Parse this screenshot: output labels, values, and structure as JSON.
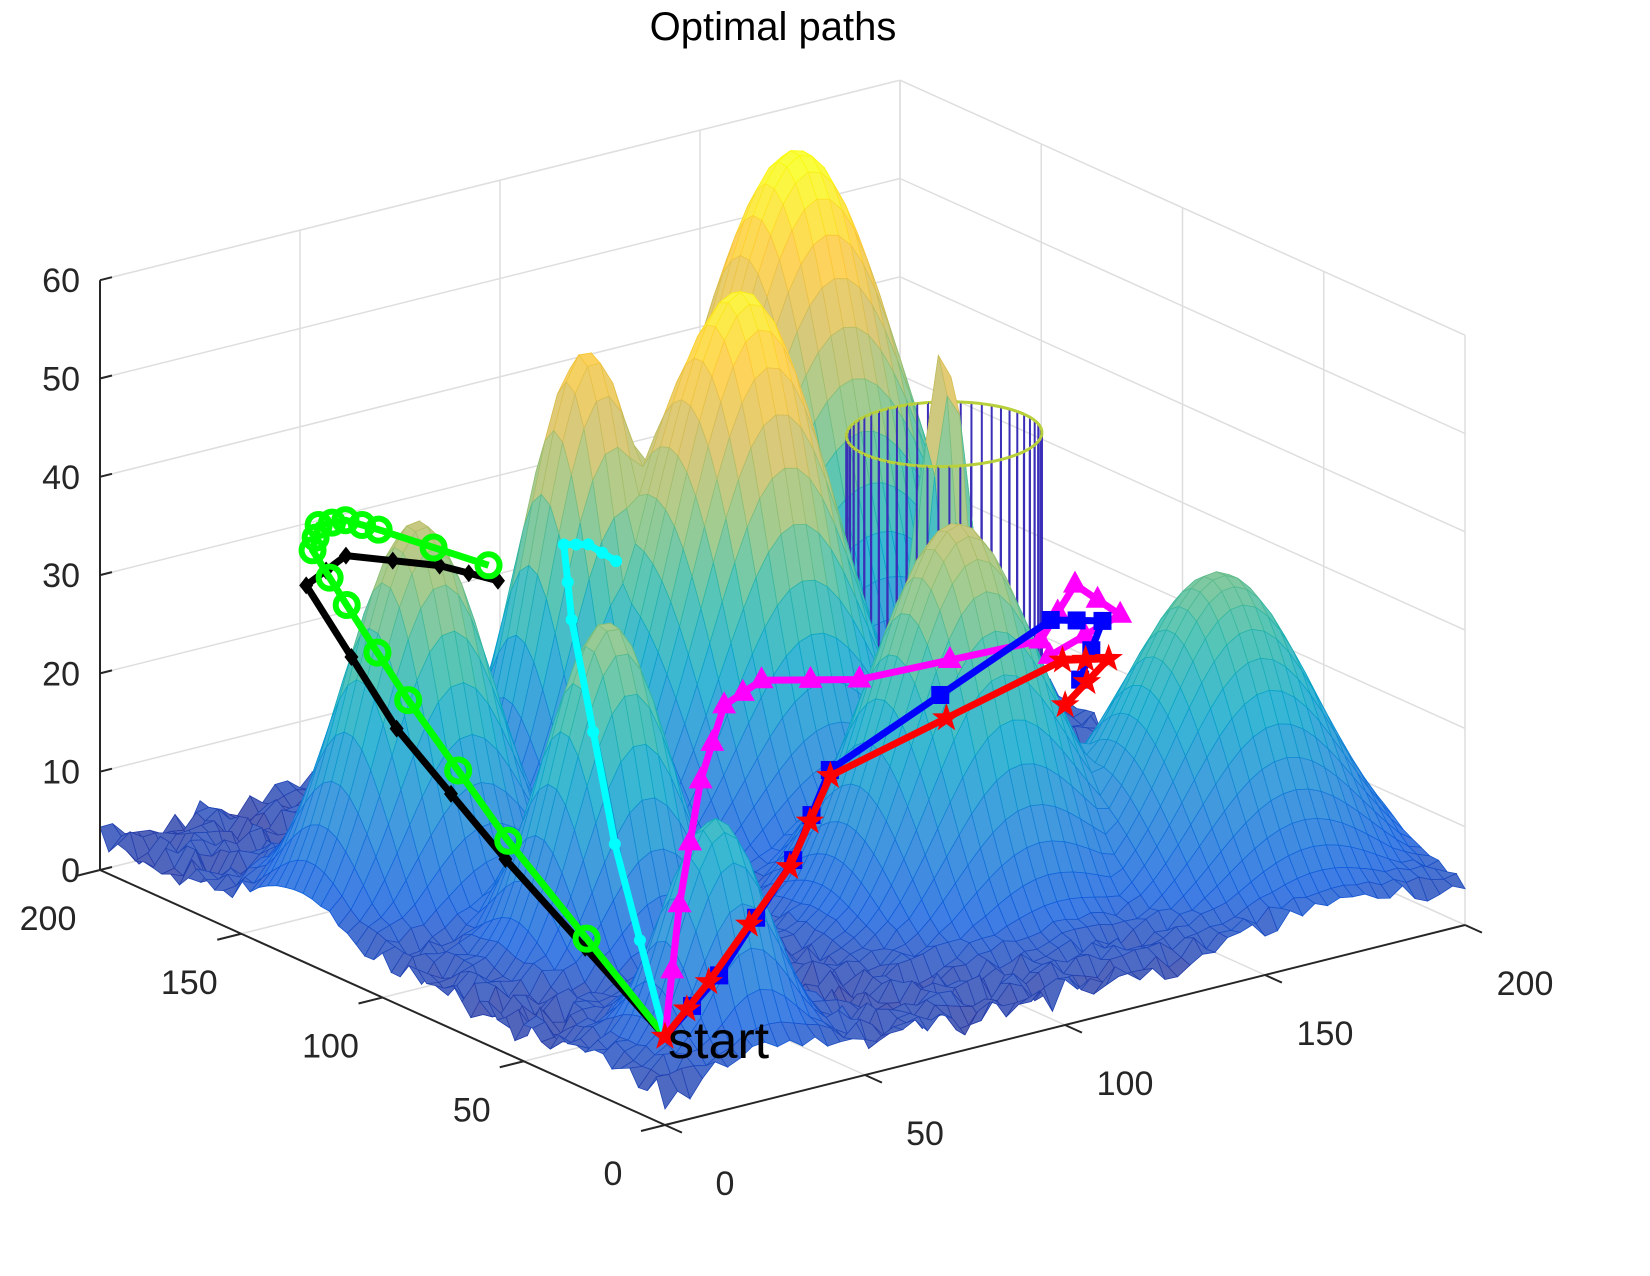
{
  "chart_data": {
    "type": "surface3d",
    "title": "Optimal paths",
    "xlabel": "",
    "ylabel": "",
    "zlabel": "",
    "xlim": [
      0,
      200
    ],
    "ylim": [
      0,
      200
    ],
    "zlim": [
      0,
      60
    ],
    "xticks": [
      "0",
      "50",
      "100",
      "150",
      "200"
    ],
    "yticks": [
      "0",
      "50",
      "100",
      "150",
      "200"
    ],
    "zticks": [
      "0",
      "10",
      "20",
      "30",
      "40",
      "50",
      "60"
    ],
    "grid": true,
    "colormap": "parula",
    "surface_peaks": [
      {
        "x": 160,
        "y": 180,
        "height": 58,
        "sigma": 22
      },
      {
        "x": 110,
        "y": 128,
        "height": 55,
        "sigma": 19
      },
      {
        "x": 85,
        "y": 150,
        "height": 46,
        "sigma": 13
      },
      {
        "x": 30,
        "y": 130,
        "height": 40,
        "sigma": 15
      },
      {
        "x": 115,
        "y": 60,
        "height": 40,
        "sigma": 18
      },
      {
        "x": 42,
        "y": 80,
        "height": 35,
        "sigma": 13
      },
      {
        "x": 168,
        "y": 42,
        "height": 32,
        "sigma": 20
      },
      {
        "x": 28,
        "y": 22,
        "height": 24,
        "sigma": 11
      },
      {
        "x": 151,
        "y": 115,
        "height": 46,
        "sigma": 6
      }
    ],
    "obstacle_cylinder": {
      "x": 151,
      "y": 115,
      "radius": 20,
      "height": 40
    },
    "start": {
      "label": "start",
      "x": 0,
      "y": 0,
      "z": 9
    },
    "series": [
      {
        "name": "black",
        "color": "#000000",
        "marker": "diamond",
        "points": [
          [
            0,
            0,
            9
          ],
          [
            6,
            65,
            18
          ],
          [
            0,
            95,
            28
          ],
          [
            12,
            144,
            35
          ],
          [
            29,
            154,
            35
          ],
          [
            51,
            152,
            32
          ],
          [
            55,
            137,
            32
          ]
        ]
      },
      {
        "name": "green",
        "color": "#00ff00",
        "marker": "circle",
        "points": [
          [
            0,
            0,
            9
          ],
          [
            6,
            64,
            20
          ],
          [
            5,
            98,
            30
          ],
          [
            8,
            124,
            36
          ],
          [
            15,
            146,
            38
          ],
          [
            25,
            158,
            38
          ],
          [
            31,
            157,
            38
          ],
          [
            40,
            158,
            36
          ],
          [
            59,
            146,
            32
          ]
        ]
      },
      {
        "name": "cyan",
        "color": "#00ffff",
        "marker": "dot",
        "points": [
          [
            0,
            0,
            9
          ],
          [
            15,
            39,
            22
          ],
          [
            60,
            118,
            30
          ],
          [
            75,
            142,
            33
          ],
          [
            79,
            139,
            33
          ],
          [
            81,
            132,
            32
          ]
        ]
      },
      {
        "name": "magenta",
        "color": "#ff00ff",
        "marker": "triangle",
        "points": [
          [
            0,
            0,
            9
          ],
          [
            46,
            60,
            10
          ],
          [
            76,
            95,
            15
          ],
          [
            96,
            115,
            18
          ],
          [
            111,
            123,
            18
          ],
          [
            127,
            111,
            18
          ],
          [
            156,
            88,
            22
          ],
          [
            171,
            97,
            25
          ],
          [
            171,
            81,
            24
          ],
          [
            159,
            89,
            20
          ]
        ]
      },
      {
        "name": "blue",
        "color": "#0000ff",
        "marker": "square",
        "points": [
          [
            0,
            0,
            9
          ],
          [
            34,
            29,
            8
          ],
          [
            73,
            58,
            12
          ],
          [
            97,
            79,
            16
          ],
          [
            172,
            107,
            20
          ],
          [
            180,
            100,
            20
          ],
          [
            173,
            98,
            15
          ]
        ]
      },
      {
        "name": "red",
        "color": "#ff0000",
        "marker": "star",
        "points": [
          [
            0,
            0,
            9
          ],
          [
            30,
            27,
            8
          ],
          [
            70,
            55,
            12
          ],
          [
            95,
            76,
            16
          ],
          [
            170,
            100,
            17
          ],
          [
            178,
            95,
            17
          ],
          [
            165,
            92,
            14
          ]
        ]
      }
    ]
  },
  "colors": {
    "axis": "#262626",
    "grid": "#dedede",
    "cylinder": "#3b2fb8",
    "cylinder_top": "#b8d03a"
  }
}
